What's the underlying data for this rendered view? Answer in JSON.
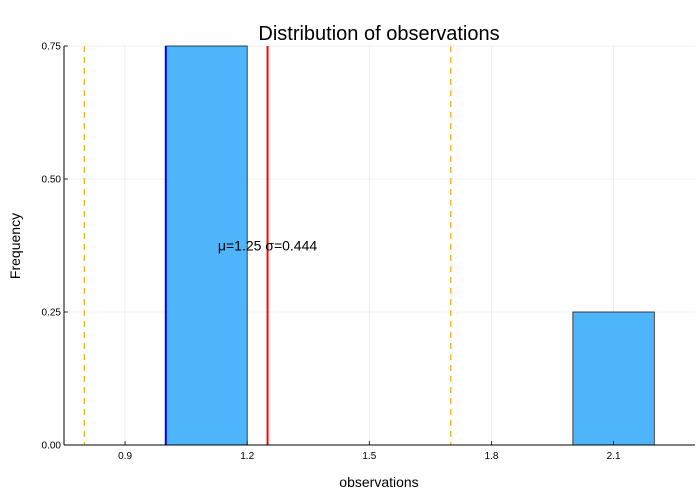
{
  "chart_data": {
    "type": "bar",
    "title": "Distribution of observations",
    "xlabel": "observations",
    "ylabel": "Frequency",
    "xlim": [
      0.75,
      2.3
    ],
    "ylim": [
      0,
      0.75
    ],
    "x_ticks": [
      0.9,
      1.2,
      1.5,
      1.8,
      2.1
    ],
    "x_tick_labels": [
      "0.9",
      "1.2",
      "1.5",
      "1.8",
      "2.1"
    ],
    "y_ticks": [
      0,
      0.25,
      0.5,
      0.75
    ],
    "y_tick_labels": [
      "0.00",
      "0.25",
      "0.50",
      "0.75"
    ],
    "grid": true,
    "legend": "none",
    "bins": [
      {
        "x0": 1.0,
        "x1": 1.2,
        "value": 0.75
      },
      {
        "x0": 2.0,
        "x1": 2.2,
        "value": 0.25
      }
    ],
    "reference_lines": [
      {
        "x": 1.0,
        "color": "#0000ff",
        "style": "solid"
      },
      {
        "x": 1.25,
        "color": "#ff0000",
        "style": "solid"
      },
      {
        "x": 0.8,
        "color": "#f5b623",
        "style": "dashed"
      },
      {
        "x": 1.7,
        "color": "#f5b623",
        "style": "dashed"
      }
    ],
    "annotation": {
      "text": "μ=1.25 σ=0.444",
      "x": 1.25,
      "y": 0.375
    },
    "colors": {
      "bar_fill": "#4eb5fb",
      "bar_stroke": "#1a1a1a",
      "grid": "#ebebeb"
    }
  }
}
